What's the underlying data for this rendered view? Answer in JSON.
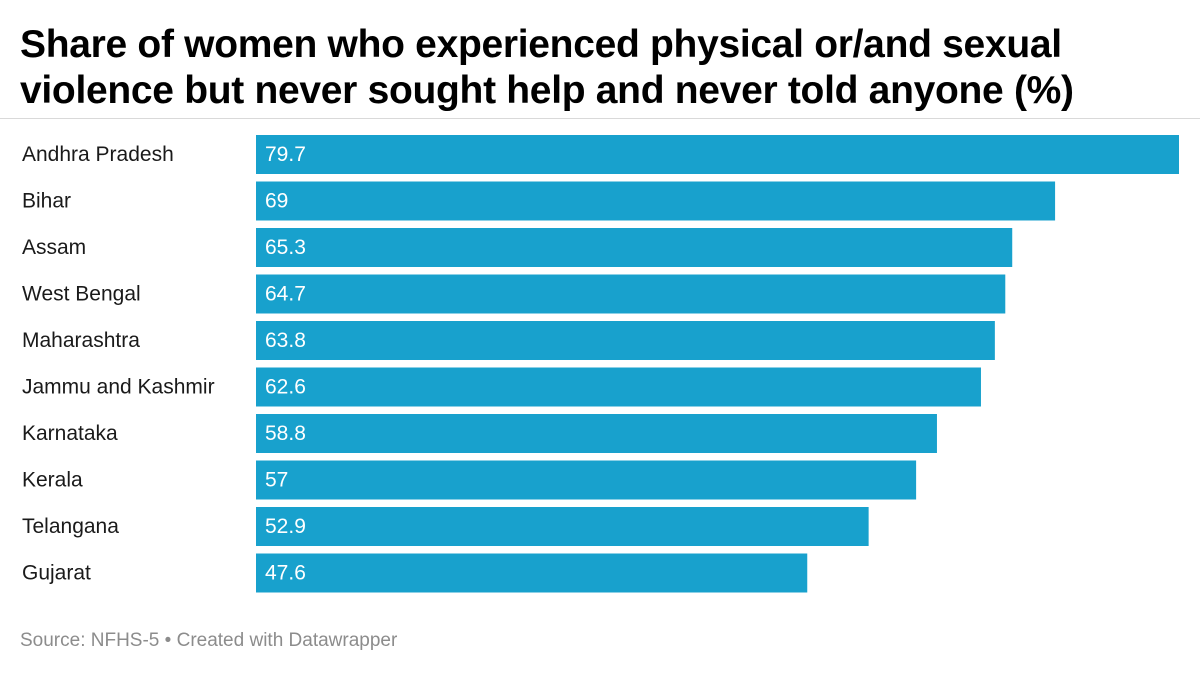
{
  "title": "Share of women who experienced physical or/and sexual violence but never sought help and never told anyone (%)",
  "footer": {
    "source": "Source: NFHS-5",
    "separator": " • ",
    "credit": "Created with Datawrapper"
  },
  "colors": {
    "bar": "#18a1cd",
    "bar_label": "#ffffff",
    "category_label": "#1a1a1a"
  },
  "chart_data": {
    "type": "bar",
    "orientation": "horizontal",
    "title": "Share of women who experienced physical or/and sexual violence but never sought help and never told anyone (%)",
    "xlabel": "",
    "ylabel": "",
    "xlim": [
      0,
      79.7
    ],
    "grid": false,
    "legend": "none",
    "categories": [
      "Andhra Pradesh",
      "Bihar",
      "Assam",
      "West Bengal",
      "Maharashtra",
      "Jammu and Kashmir",
      "Karnataka",
      "Kerala",
      "Telangana",
      "Gujarat"
    ],
    "values": [
      79.7,
      69,
      65.3,
      64.7,
      63.8,
      62.6,
      58.8,
      57,
      52.9,
      47.6
    ],
    "value_labels": [
      "79.7",
      "69",
      "65.3",
      "64.7",
      "63.8",
      "62.6",
      "58.8",
      "57",
      "52.9",
      "47.6"
    ]
  }
}
